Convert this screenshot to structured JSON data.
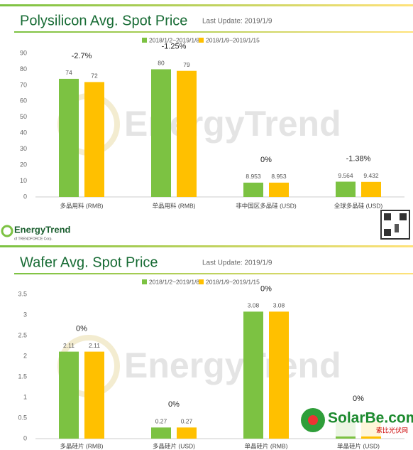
{
  "chart_data": [
    {
      "type": "bar",
      "title": "Polysilicon Avg. Spot Price",
      "subtitle": "Last Update: 2019/1/9",
      "categories": [
        "多晶用料 (RMB)",
        "单晶用料 (RMB)",
        "非中国区多晶硅 (USD)",
        "全球多晶硅 (USD)"
      ],
      "series": [
        {
          "name": "2018/1/2~2019/1/8",
          "color": "#7cc242",
          "values": [
            74,
            80,
            8.953,
            9.564
          ]
        },
        {
          "name": "2018/1/9~2019/1/15",
          "color": "#ffc000",
          "values": [
            72,
            79,
            8.953,
            9.432
          ]
        }
      ],
      "annotations": [
        "-2.7%",
        "-1.25%",
        "0%",
        "-1.38%"
      ],
      "ylim": [
        0,
        90
      ],
      "yticks": [
        0,
        10,
        20,
        30,
        40,
        50,
        60,
        70,
        80,
        90
      ],
      "grid": false,
      "legend": "top"
    },
    {
      "type": "bar",
      "title": "Wafer Avg. Spot Price",
      "subtitle": "Last Update: 2019/1/9",
      "categories": [
        "多晶硅片 (RMB)",
        "多晶硅片 (USD)",
        "单晶硅片 (RMB)",
        "单晶硅片 (USD)"
      ],
      "series": [
        {
          "name": "2018/1/2~2019/1/8",
          "color": "#7cc242",
          "values": [
            2.11,
            0.27,
            3.08,
            0.41
          ]
        },
        {
          "name": "2018/1/9~2019/1/15",
          "color": "#ffc000",
          "values": [
            2.11,
            0.27,
            3.08,
            0.41
          ]
        }
      ],
      "annotations": [
        "0%",
        "0%",
        "0%",
        "0%"
      ],
      "ylim": [
        0,
        3.5
      ],
      "yticks": [
        0,
        0.5,
        1,
        1.5,
        2,
        2.5,
        3,
        3.5
      ],
      "grid": false,
      "legend": "top"
    }
  ],
  "branding": {
    "watermark": "EnergyTrend",
    "logo": "EnergyTrend",
    "logo_sub": "of TRENDFORCE Corp.",
    "site": "SolarBe.com",
    "site_cn": "索比光伏网"
  }
}
